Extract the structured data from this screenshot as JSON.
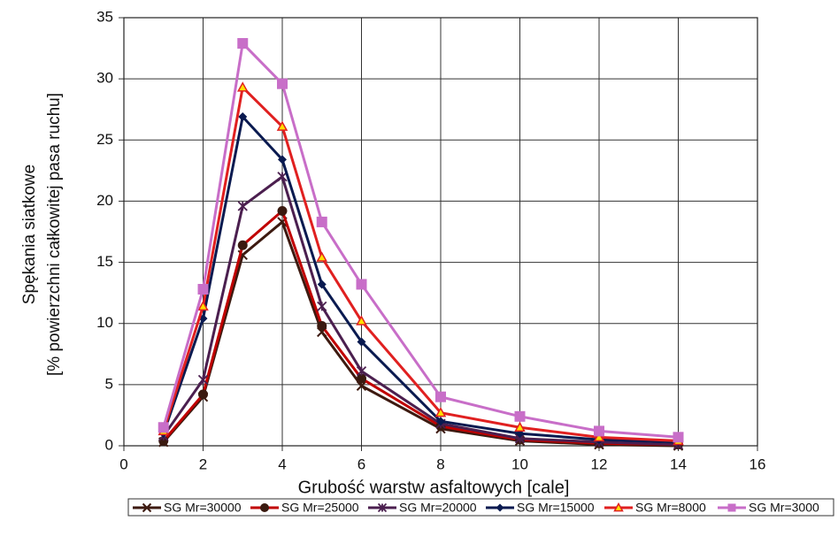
{
  "chart_data": {
    "type": "line",
    "xlabel": "Grubość warstw asfaltowych [cale]",
    "ylabel": [
      "Spękania siatkowe",
      "[% powierzchni całkowitej pasa ruchu]"
    ],
    "x": [
      1,
      2,
      3,
      4,
      5,
      6,
      8,
      10,
      12,
      14
    ],
    "series": [
      {
        "name": "SG Mr=30000",
        "color": "#3d1a10",
        "marker": "x",
        "marker_fill": "#3d1a10",
        "values": [
          0.3,
          4.0,
          15.6,
          18.3,
          9.3,
          4.9,
          1.4,
          0.4,
          0.1,
          0.0
        ]
      },
      {
        "name": "SG Mr=25000",
        "color": "#c00000",
        "marker": "circle",
        "marker_fill": "#3a1a10",
        "values": [
          0.4,
          4.2,
          16.4,
          19.2,
          9.8,
          5.5,
          1.6,
          0.5,
          0.2,
          0.1
        ]
      },
      {
        "name": "SG Mr=20000",
        "color": "#4b1f4f",
        "marker": "star",
        "marker_fill": "#4b1f4f",
        "values": [
          0.8,
          5.4,
          19.6,
          22.0,
          11.4,
          6.1,
          1.8,
          0.6,
          0.3,
          0.1
        ]
      },
      {
        "name": "SG Mr=15000",
        "color": "#0a1a50",
        "marker": "diamond",
        "marker_fill": "#0a1a50",
        "values": [
          1.0,
          10.4,
          26.9,
          23.4,
          13.2,
          8.5,
          2.0,
          1.0,
          0.5,
          0.3
        ]
      },
      {
        "name": "SG Mr=8000",
        "color": "#e02020",
        "marker": "triangle",
        "marker_fill": "#ffe000",
        "values": [
          1.2,
          11.4,
          29.3,
          26.1,
          15.4,
          10.2,
          2.7,
          1.5,
          0.7,
          0.4
        ]
      },
      {
        "name": "SG Mr=3000",
        "color": "#c86ec8",
        "marker": "square",
        "marker_fill": "#c86ec8",
        "values": [
          1.5,
          12.8,
          32.9,
          29.6,
          18.3,
          13.2,
          4.0,
          2.4,
          1.2,
          0.7
        ]
      }
    ],
    "xlim": [
      0,
      16
    ],
    "xticks": [
      0,
      2,
      4,
      6,
      8,
      10,
      12,
      14,
      16
    ],
    "ylim": [
      0,
      35
    ],
    "yticks": [
      0,
      5,
      10,
      15,
      20,
      25,
      30,
      35
    ],
    "grid": true,
    "legend": "bottom"
  }
}
